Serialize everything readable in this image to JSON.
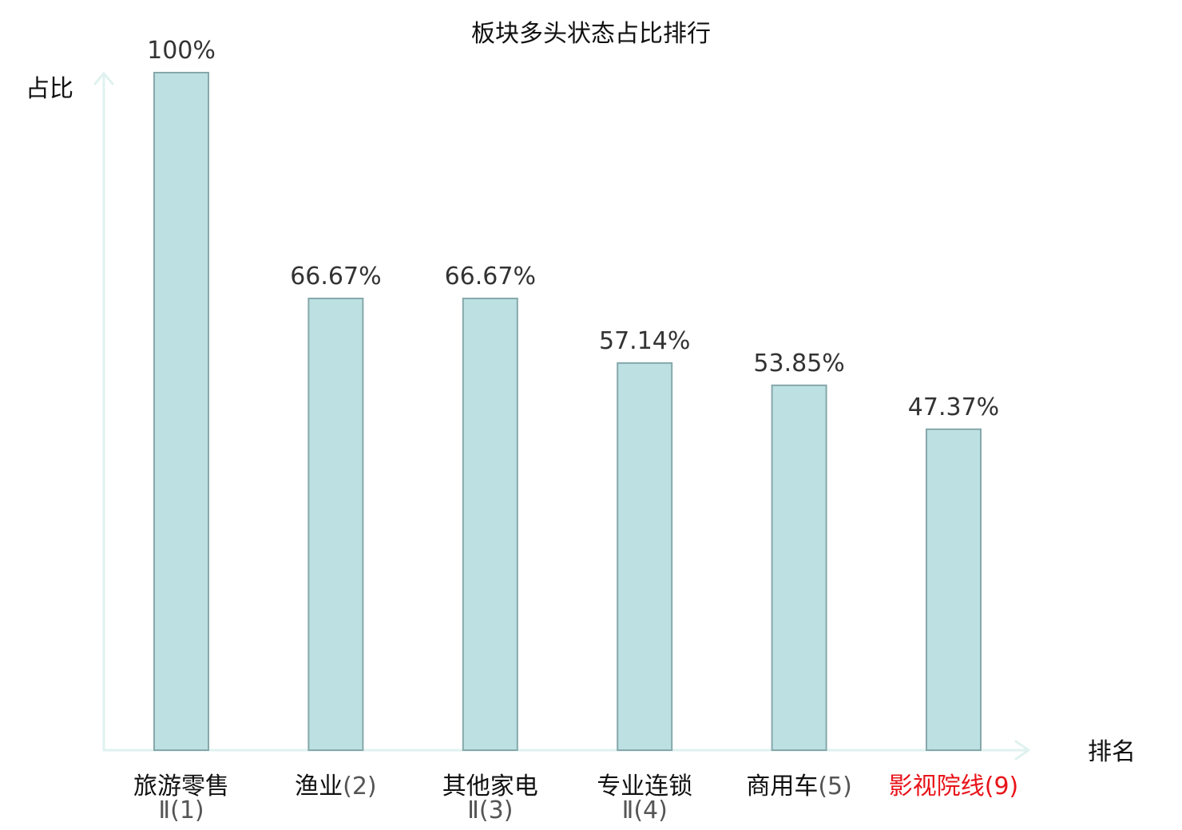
{
  "chart_data": {
    "type": "bar",
    "title": "板块多头状态占比排行",
    "ylabel": "占比",
    "xlabel": "排名",
    "ylim": [
      0,
      100
    ],
    "grid": false,
    "categories": [
      {
        "name": "旅游零售",
        "name_line2": "Ⅱ",
        "rank": "(1)",
        "highlight": false
      },
      {
        "name": "渔业",
        "name_line2": "",
        "rank": "(2)",
        "highlight": false
      },
      {
        "name": "其他家电",
        "name_line2": "Ⅱ",
        "rank": "(3)",
        "highlight": false
      },
      {
        "name": "专业连锁",
        "name_line2": "Ⅱ",
        "rank": "(4)",
        "highlight": false
      },
      {
        "name": "商用车",
        "name_line2": "",
        "rank": "(5)",
        "highlight": false
      },
      {
        "name": "影视院线",
        "name_line2": "",
        "rank": "(9)",
        "highlight": true
      }
    ],
    "values": [
      100,
      66.67,
      66.67,
      57.14,
      53.85,
      47.37
    ],
    "value_labels": [
      "100%",
      "66.67%",
      "66.67%",
      "57.14%",
      "53.85%",
      "47.37%"
    ],
    "colors": {
      "bar_fill": "#bde0e3",
      "bar_stroke": "#86a8ab",
      "axis": "#dff2ef",
      "highlight_text": "#e8141a",
      "normal_text": "#111111"
    }
  }
}
